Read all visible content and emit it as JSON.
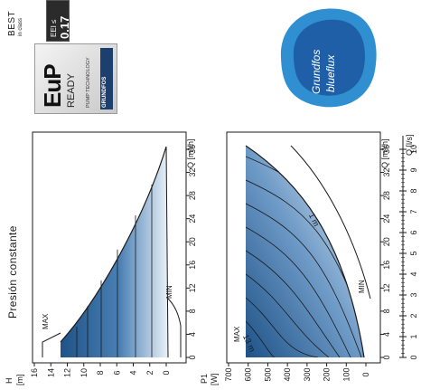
{
  "badge": {
    "best": "BEST",
    "in_class": "in class",
    "eei_label": "EEI ≤",
    "eei_value": "0.17",
    "eup": "EuP",
    "ready": "READY",
    "pump_technology": "PUMP TECHNOLOGY",
    "grundfos": "GRUNDFOS"
  },
  "logo": {
    "line1": "Grundfos",
    "line2": "blueflux",
    "color": "#2f8fd0"
  },
  "left_chart": {
    "title": "Presión constante",
    "y_unit_top": "H",
    "y_unit_bottom": "[m]",
    "h_ticks": [
      "16",
      "14",
      "12",
      "10",
      "8",
      "6",
      "4",
      "2",
      "0"
    ],
    "q_ticks": [
      "0",
      "4",
      "8",
      "12",
      "16",
      "20",
      "24",
      "28",
      "32",
      "36"
    ],
    "q_label": "Q [m³/h]",
    "max_label": "MAX",
    "min_label": "MIN"
  },
  "right_chart": {
    "p_unit_top": "P1",
    "p_unit_bottom": "[W]",
    "p_ticks": [
      "700",
      "600",
      "500",
      "400",
      "300",
      "200",
      "100",
      "0"
    ],
    "q_ticks": [
      "0",
      "4",
      "8",
      "12",
      "16",
      "20",
      "24",
      "28",
      "32",
      "36"
    ],
    "q_label": "Q [m³/h]",
    "q_ls_label": "Q [l/s]",
    "q_ls_ticks": [
      "0",
      "1",
      "2",
      "3",
      "4",
      "5",
      "6",
      "7",
      "8",
      "9",
      "10"
    ],
    "curve_top": "1 m",
    "curve_bottom": "13 m",
    "max_label": "MAX",
    "min_label": "MIN"
  },
  "colors": {
    "dark_blue": "#1e5288",
    "light_blue": "#eaf1f8",
    "line": "#1a1a1a"
  }
}
